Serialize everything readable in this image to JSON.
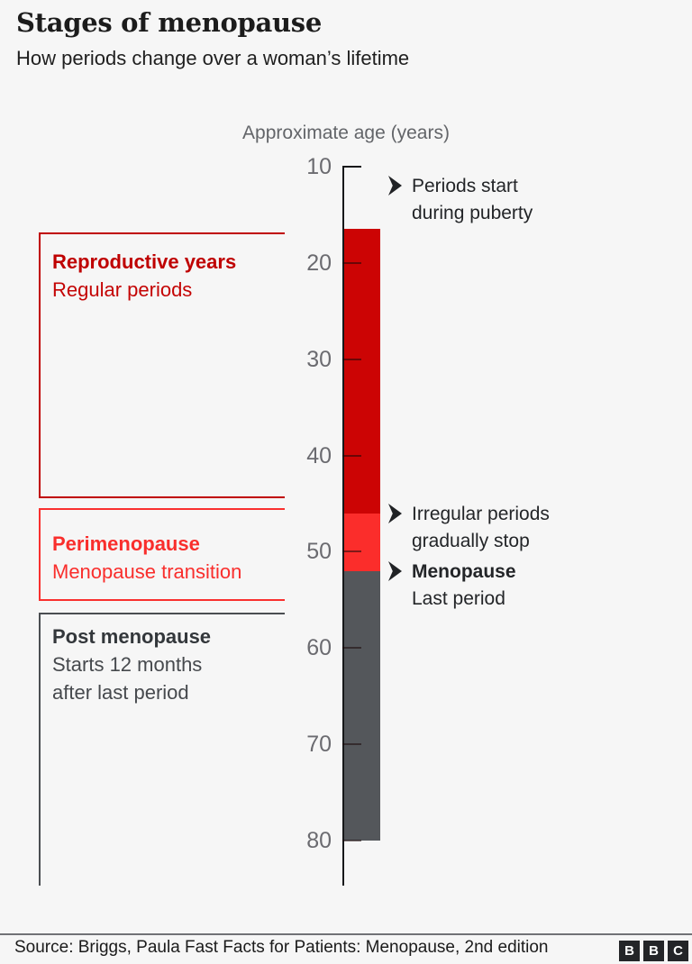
{
  "header": {
    "title": "Stages of menopause",
    "subtitle": "How periods change over a woman’s lifetime"
  },
  "axis": {
    "title": "Approximate age (years)",
    "ticks": [
      10,
      20,
      30,
      40,
      50,
      60,
      70,
      80
    ],
    "range": [
      10,
      80
    ]
  },
  "stages": [
    {
      "label": "Reproductive years",
      "sublabel_lines": [
        "Regular periods"
      ],
      "age_start": 16.5,
      "age_end": 46,
      "bar_color": "#cc0404",
      "label_color": "#bf0000",
      "sub_color": "#c40404",
      "bracket_color": "#c00000"
    },
    {
      "label": "Perimenopause",
      "sublabel_lines": [
        "Menopause transition"
      ],
      "age_start": 46,
      "age_end": 52,
      "bar_color": "#fb2d2b",
      "label_color": "#f92e2c",
      "sub_color": "#f92e2c",
      "bracket_color": "#f9302e"
    },
    {
      "label": "Post menopause",
      "sublabel_lines": [
        "Starts 12 months",
        "after last period"
      ],
      "age_start": 52,
      "age_end": 80,
      "bar_color": "#54575b",
      "label_color": "#33373b",
      "sub_color": "#46494d",
      "bracket_color": "#4b4e52"
    }
  ],
  "annotations": [
    {
      "age": 12,
      "lines": [
        {
          "text": "Periods start",
          "bold": false
        },
        {
          "text": "during puberty",
          "bold": false
        }
      ]
    },
    {
      "age": 46,
      "lines": [
        {
          "text": "Irregular periods",
          "bold": false
        },
        {
          "text": "gradually stop",
          "bold": false
        }
      ]
    },
    {
      "age": 52,
      "lines": [
        {
          "text": "Menopause",
          "bold": true
        },
        {
          "text": "Last period",
          "bold": false
        }
      ]
    }
  ],
  "footer": {
    "source": "Source: Briggs, Paula Fast Facts for Patients: Menopause, 2nd edition",
    "logo": [
      "B",
      "B",
      "C"
    ]
  },
  "colors": {
    "background": "#f6f6f6",
    "text": "#1f1f1f",
    "muted": "#66686c",
    "axis": "#17181a"
  },
  "chart_data": {
    "type": "bar",
    "orientation": "vertical",
    "title": "Stages of menopause",
    "subtitle": "How periods change over a woman’s lifetime",
    "axis_label": "Approximate age (years)",
    "axis_range": [
      10,
      80
    ],
    "tick_labels": [
      10,
      20,
      30,
      40,
      50,
      60,
      70,
      80
    ],
    "grid": false,
    "segments": [
      {
        "name": "Reproductive years",
        "description": "Regular periods",
        "age_start": 16.5,
        "age_end": 46,
        "color": "#cc0404"
      },
      {
        "name": "Perimenopause",
        "description": "Menopause transition",
        "age_start": 46,
        "age_end": 52,
        "color": "#fb2d2b"
      },
      {
        "name": "Post menopause",
        "description": "Starts 12 months after last period",
        "age_start": 52,
        "age_end": 80,
        "color": "#54575b"
      }
    ],
    "annotations": [
      {
        "age": 12,
        "text": "Periods start during puberty"
      },
      {
        "age": 46,
        "text": "Irregular periods gradually stop"
      },
      {
        "age": 52,
        "text": "Menopause — Last period"
      }
    ]
  }
}
